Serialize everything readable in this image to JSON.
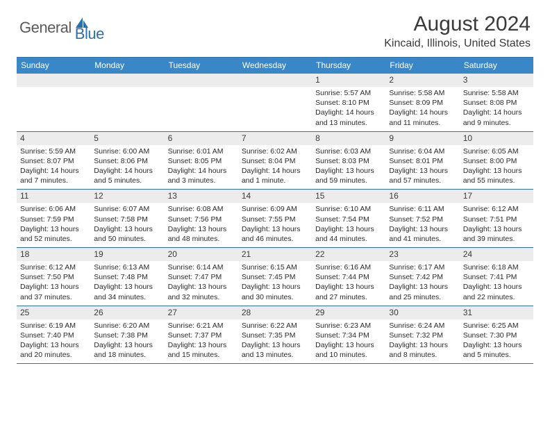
{
  "logo": {
    "general": "General",
    "blue": "Blue"
  },
  "title": "August 2024",
  "location": "Kincaid, Illinois, United States",
  "colors": {
    "header_bg": "#3a87c8",
    "border": "#2f6fa9",
    "shade": "#ececec",
    "text": "#3a3a3a"
  },
  "day_names": [
    "Sunday",
    "Monday",
    "Tuesday",
    "Wednesday",
    "Thursday",
    "Friday",
    "Saturday"
  ],
  "weeks": [
    [
      null,
      null,
      null,
      null,
      {
        "n": "1",
        "sr": "5:57 AM",
        "ss": "8:10 PM",
        "dl": "14 hours and 13 minutes."
      },
      {
        "n": "2",
        "sr": "5:58 AM",
        "ss": "8:09 PM",
        "dl": "14 hours and 11 minutes."
      },
      {
        "n": "3",
        "sr": "5:58 AM",
        "ss": "8:08 PM",
        "dl": "14 hours and 9 minutes."
      }
    ],
    [
      {
        "n": "4",
        "sr": "5:59 AM",
        "ss": "8:07 PM",
        "dl": "14 hours and 7 minutes."
      },
      {
        "n": "5",
        "sr": "6:00 AM",
        "ss": "8:06 PM",
        "dl": "14 hours and 5 minutes."
      },
      {
        "n": "6",
        "sr": "6:01 AM",
        "ss": "8:05 PM",
        "dl": "14 hours and 3 minutes."
      },
      {
        "n": "7",
        "sr": "6:02 AM",
        "ss": "8:04 PM",
        "dl": "14 hours and 1 minute."
      },
      {
        "n": "8",
        "sr": "6:03 AM",
        "ss": "8:03 PM",
        "dl": "13 hours and 59 minutes."
      },
      {
        "n": "9",
        "sr": "6:04 AM",
        "ss": "8:01 PM",
        "dl": "13 hours and 57 minutes."
      },
      {
        "n": "10",
        "sr": "6:05 AM",
        "ss": "8:00 PM",
        "dl": "13 hours and 55 minutes."
      }
    ],
    [
      {
        "n": "11",
        "sr": "6:06 AM",
        "ss": "7:59 PM",
        "dl": "13 hours and 52 minutes."
      },
      {
        "n": "12",
        "sr": "6:07 AM",
        "ss": "7:58 PM",
        "dl": "13 hours and 50 minutes."
      },
      {
        "n": "13",
        "sr": "6:08 AM",
        "ss": "7:56 PM",
        "dl": "13 hours and 48 minutes."
      },
      {
        "n": "14",
        "sr": "6:09 AM",
        "ss": "7:55 PM",
        "dl": "13 hours and 46 minutes."
      },
      {
        "n": "15",
        "sr": "6:10 AM",
        "ss": "7:54 PM",
        "dl": "13 hours and 44 minutes."
      },
      {
        "n": "16",
        "sr": "6:11 AM",
        "ss": "7:52 PM",
        "dl": "13 hours and 41 minutes."
      },
      {
        "n": "17",
        "sr": "6:12 AM",
        "ss": "7:51 PM",
        "dl": "13 hours and 39 minutes."
      }
    ],
    [
      {
        "n": "18",
        "sr": "6:12 AM",
        "ss": "7:50 PM",
        "dl": "13 hours and 37 minutes."
      },
      {
        "n": "19",
        "sr": "6:13 AM",
        "ss": "7:48 PM",
        "dl": "13 hours and 34 minutes."
      },
      {
        "n": "20",
        "sr": "6:14 AM",
        "ss": "7:47 PM",
        "dl": "13 hours and 32 minutes."
      },
      {
        "n": "21",
        "sr": "6:15 AM",
        "ss": "7:45 PM",
        "dl": "13 hours and 30 minutes."
      },
      {
        "n": "22",
        "sr": "6:16 AM",
        "ss": "7:44 PM",
        "dl": "13 hours and 27 minutes."
      },
      {
        "n": "23",
        "sr": "6:17 AM",
        "ss": "7:42 PM",
        "dl": "13 hours and 25 minutes."
      },
      {
        "n": "24",
        "sr": "6:18 AM",
        "ss": "7:41 PM",
        "dl": "13 hours and 22 minutes."
      }
    ],
    [
      {
        "n": "25",
        "sr": "6:19 AM",
        "ss": "7:40 PM",
        "dl": "13 hours and 20 minutes."
      },
      {
        "n": "26",
        "sr": "6:20 AM",
        "ss": "7:38 PM",
        "dl": "13 hours and 18 minutes."
      },
      {
        "n": "27",
        "sr": "6:21 AM",
        "ss": "7:37 PM",
        "dl": "13 hours and 15 minutes."
      },
      {
        "n": "28",
        "sr": "6:22 AM",
        "ss": "7:35 PM",
        "dl": "13 hours and 13 minutes."
      },
      {
        "n": "29",
        "sr": "6:23 AM",
        "ss": "7:34 PM",
        "dl": "13 hours and 10 minutes."
      },
      {
        "n": "30",
        "sr": "6:24 AM",
        "ss": "7:32 PM",
        "dl": "13 hours and 8 minutes."
      },
      {
        "n": "31",
        "sr": "6:25 AM",
        "ss": "7:30 PM",
        "dl": "13 hours and 5 minutes."
      }
    ]
  ],
  "labels": {
    "sunrise": "Sunrise: ",
    "sunset": "Sunset: ",
    "daylight": "Daylight: "
  }
}
